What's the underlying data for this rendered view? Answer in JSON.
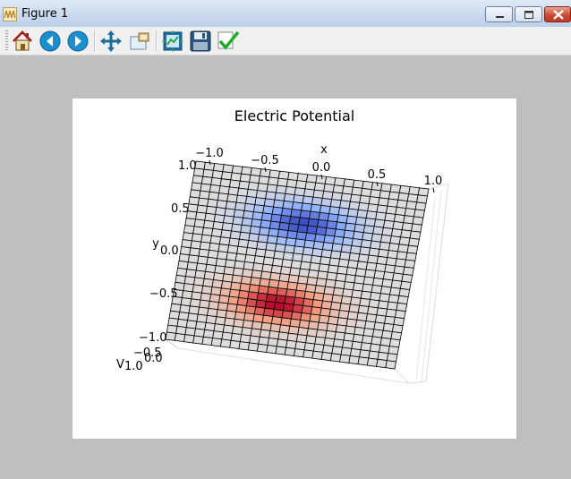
{
  "window": {
    "title": "Figure 1"
  },
  "toolbar": {
    "buttons": [
      {
        "name": "home-button",
        "icon": "home-icon"
      },
      {
        "name": "back-button",
        "icon": "arrow-left-icon"
      },
      {
        "name": "forward-button",
        "icon": "arrow-right-icon"
      },
      {
        "name": "pan-button",
        "icon": "move-icon"
      },
      {
        "name": "zoom-button",
        "icon": "zoom-rect-icon"
      },
      {
        "name": "subplots-button",
        "icon": "subplot-config-icon"
      },
      {
        "name": "save-button",
        "icon": "floppy-icon"
      },
      {
        "name": "edit-button",
        "icon": "checkmark-icon"
      }
    ]
  },
  "colors": {
    "negative": "#3b4cc0",
    "neutral": "#dddddd",
    "positive": "#b40426",
    "grid": "#000000"
  },
  "chart_data": {
    "type": "surface3d",
    "title": "Electric Potential",
    "xlabel": "x",
    "ylabel": "y",
    "zlabel": "V",
    "x_ticks": [
      "−1.0",
      "−0.5",
      "0.0",
      "0.5",
      "1.0"
    ],
    "y_ticks": [
      "1.0",
      "0.5",
      "0.0",
      "−0.5",
      "−1.0"
    ],
    "z_ticks": [
      "−0.5",
      "0.0"
    ],
    "z_extra_label": "1.0",
    "xlim": [
      -1,
      1
    ],
    "ylim": [
      -1,
      1
    ],
    "grid": true,
    "colormap": "coolwarm",
    "mesh_cols": 25,
    "mesh_rows": 25,
    "peaks": [
      {
        "x": 0.0,
        "y": 0.45,
        "value": -1.0
      },
      {
        "x": -0.1,
        "y": -0.45,
        "value": 1.0
      }
    ]
  }
}
